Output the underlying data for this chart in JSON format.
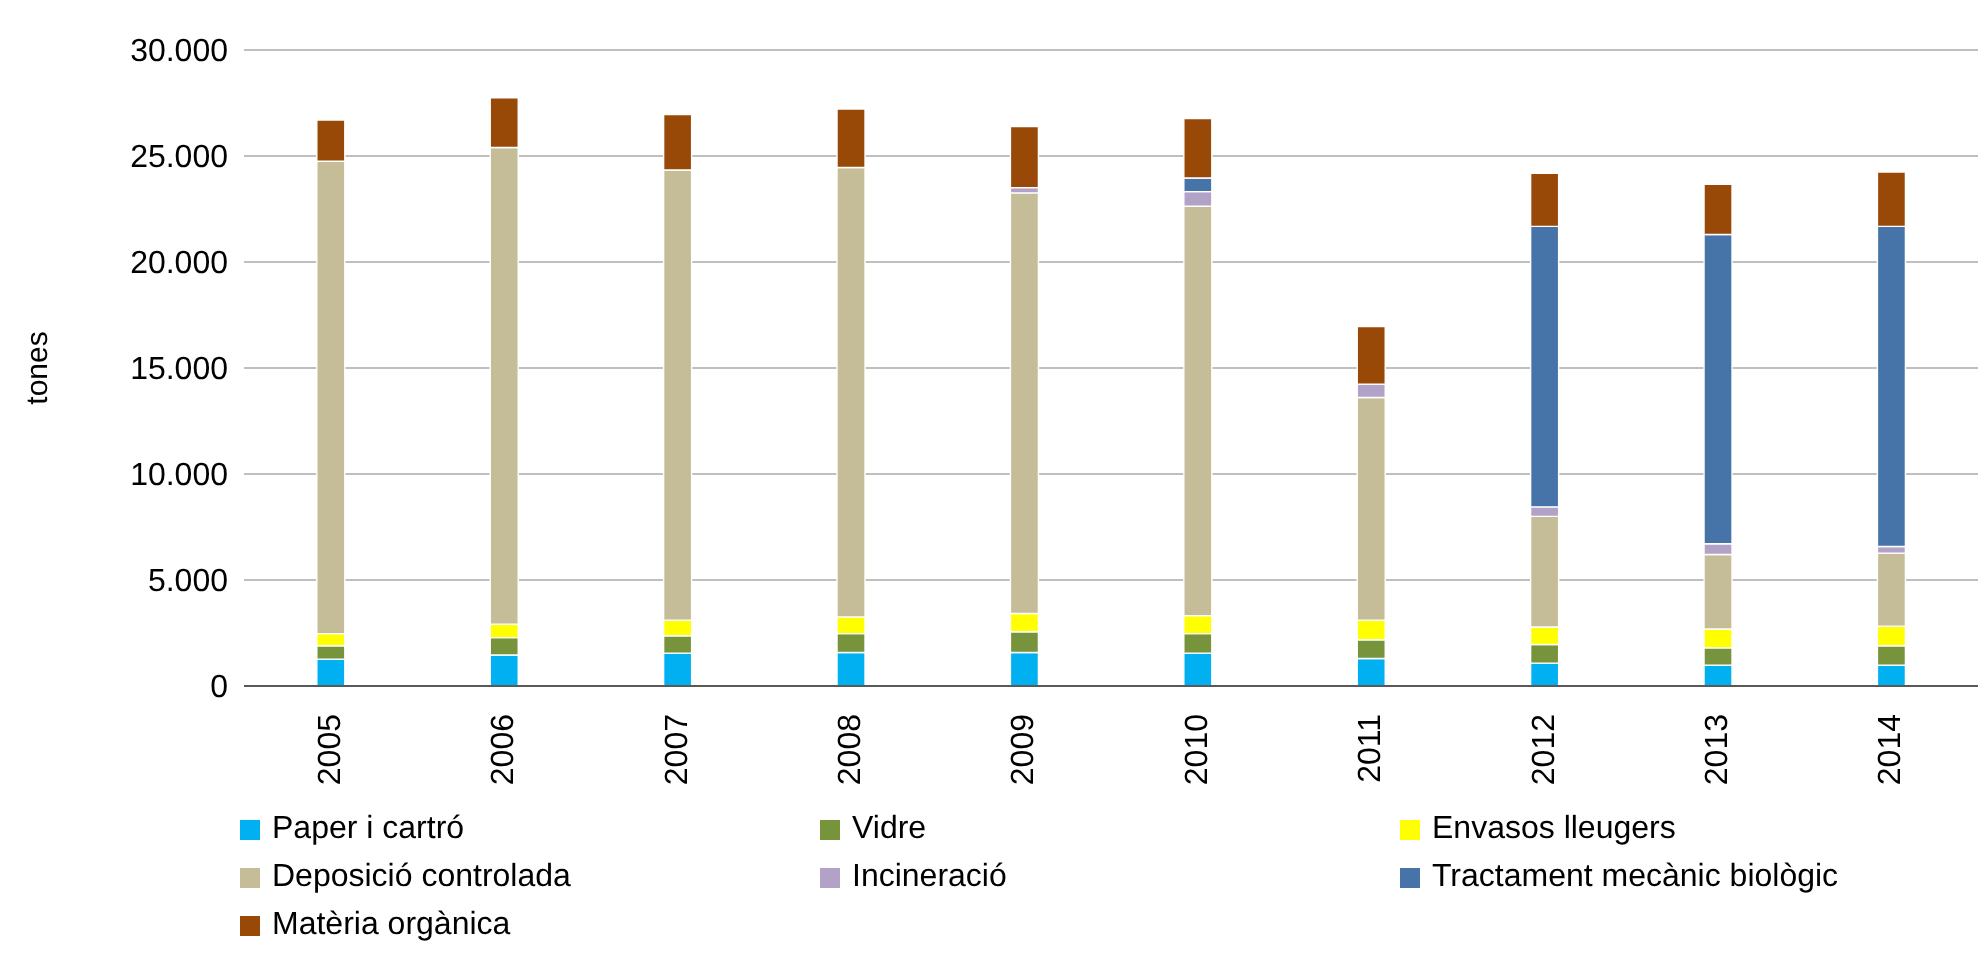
{
  "chart_data": {
    "type": "bar",
    "stacked": true,
    "ylabel": "tones",
    "categories": [
      "2005",
      "2006",
      "2007",
      "2008",
      "2009",
      "2010",
      "2011",
      "2012",
      "2013",
      "2014"
    ],
    "series": [
      {
        "name": "Paper i cartró",
        "color": "#00b0f0",
        "values": [
          1270,
          1460,
          1550,
          1580,
          1580,
          1550,
          1300,
          1080,
          980,
          980
        ]
      },
      {
        "name": "Vidre",
        "color": "#77933c",
        "values": [
          630,
          820,
          820,
          890,
          980,
          920,
          880,
          880,
          820,
          920
        ]
      },
      {
        "name": "Envasos lleugers",
        "color": "#ffff00",
        "values": [
          570,
          630,
          730,
          790,
          860,
          850,
          920,
          820,
          890,
          920
        ]
      },
      {
        "name": "Deposició controlada",
        "color": "#c4bd97",
        "values": [
          22280,
          22490,
          21240,
          21200,
          19840,
          19310,
          10510,
          5220,
          3510,
          3450
        ]
      },
      {
        "name": "Incineració",
        "color": "#b3a2c7",
        "values": [
          0,
          0,
          0,
          0,
          250,
          690,
          630,
          450,
          510,
          310
        ]
      },
      {
        "name": "Tractament mecànic biològic",
        "color": "#4673a8",
        "values": [
          0,
          0,
          0,
          0,
          0,
          640,
          0,
          13230,
          14590,
          15100
        ]
      },
      {
        "name": "Matèria orgànica",
        "color": "#984807",
        "values": [
          1950,
          2350,
          2620,
          2760,
          2880,
          2810,
          2720,
          2500,
          2370,
          2560
        ]
      }
    ],
    "ylim": [
      0,
      30000
    ],
    "yticks": [
      {
        "value": 0,
        "label": "0"
      },
      {
        "value": 5000,
        "label": "5.000"
      },
      {
        "value": 10000,
        "label": "10.000"
      },
      {
        "value": 15000,
        "label": "15.000"
      },
      {
        "value": 20000,
        "label": "20.000"
      },
      {
        "value": 25000,
        "label": "25.000"
      },
      {
        "value": 30000,
        "label": "30.000"
      }
    ],
    "grid": "y",
    "legend": "bottom"
  }
}
